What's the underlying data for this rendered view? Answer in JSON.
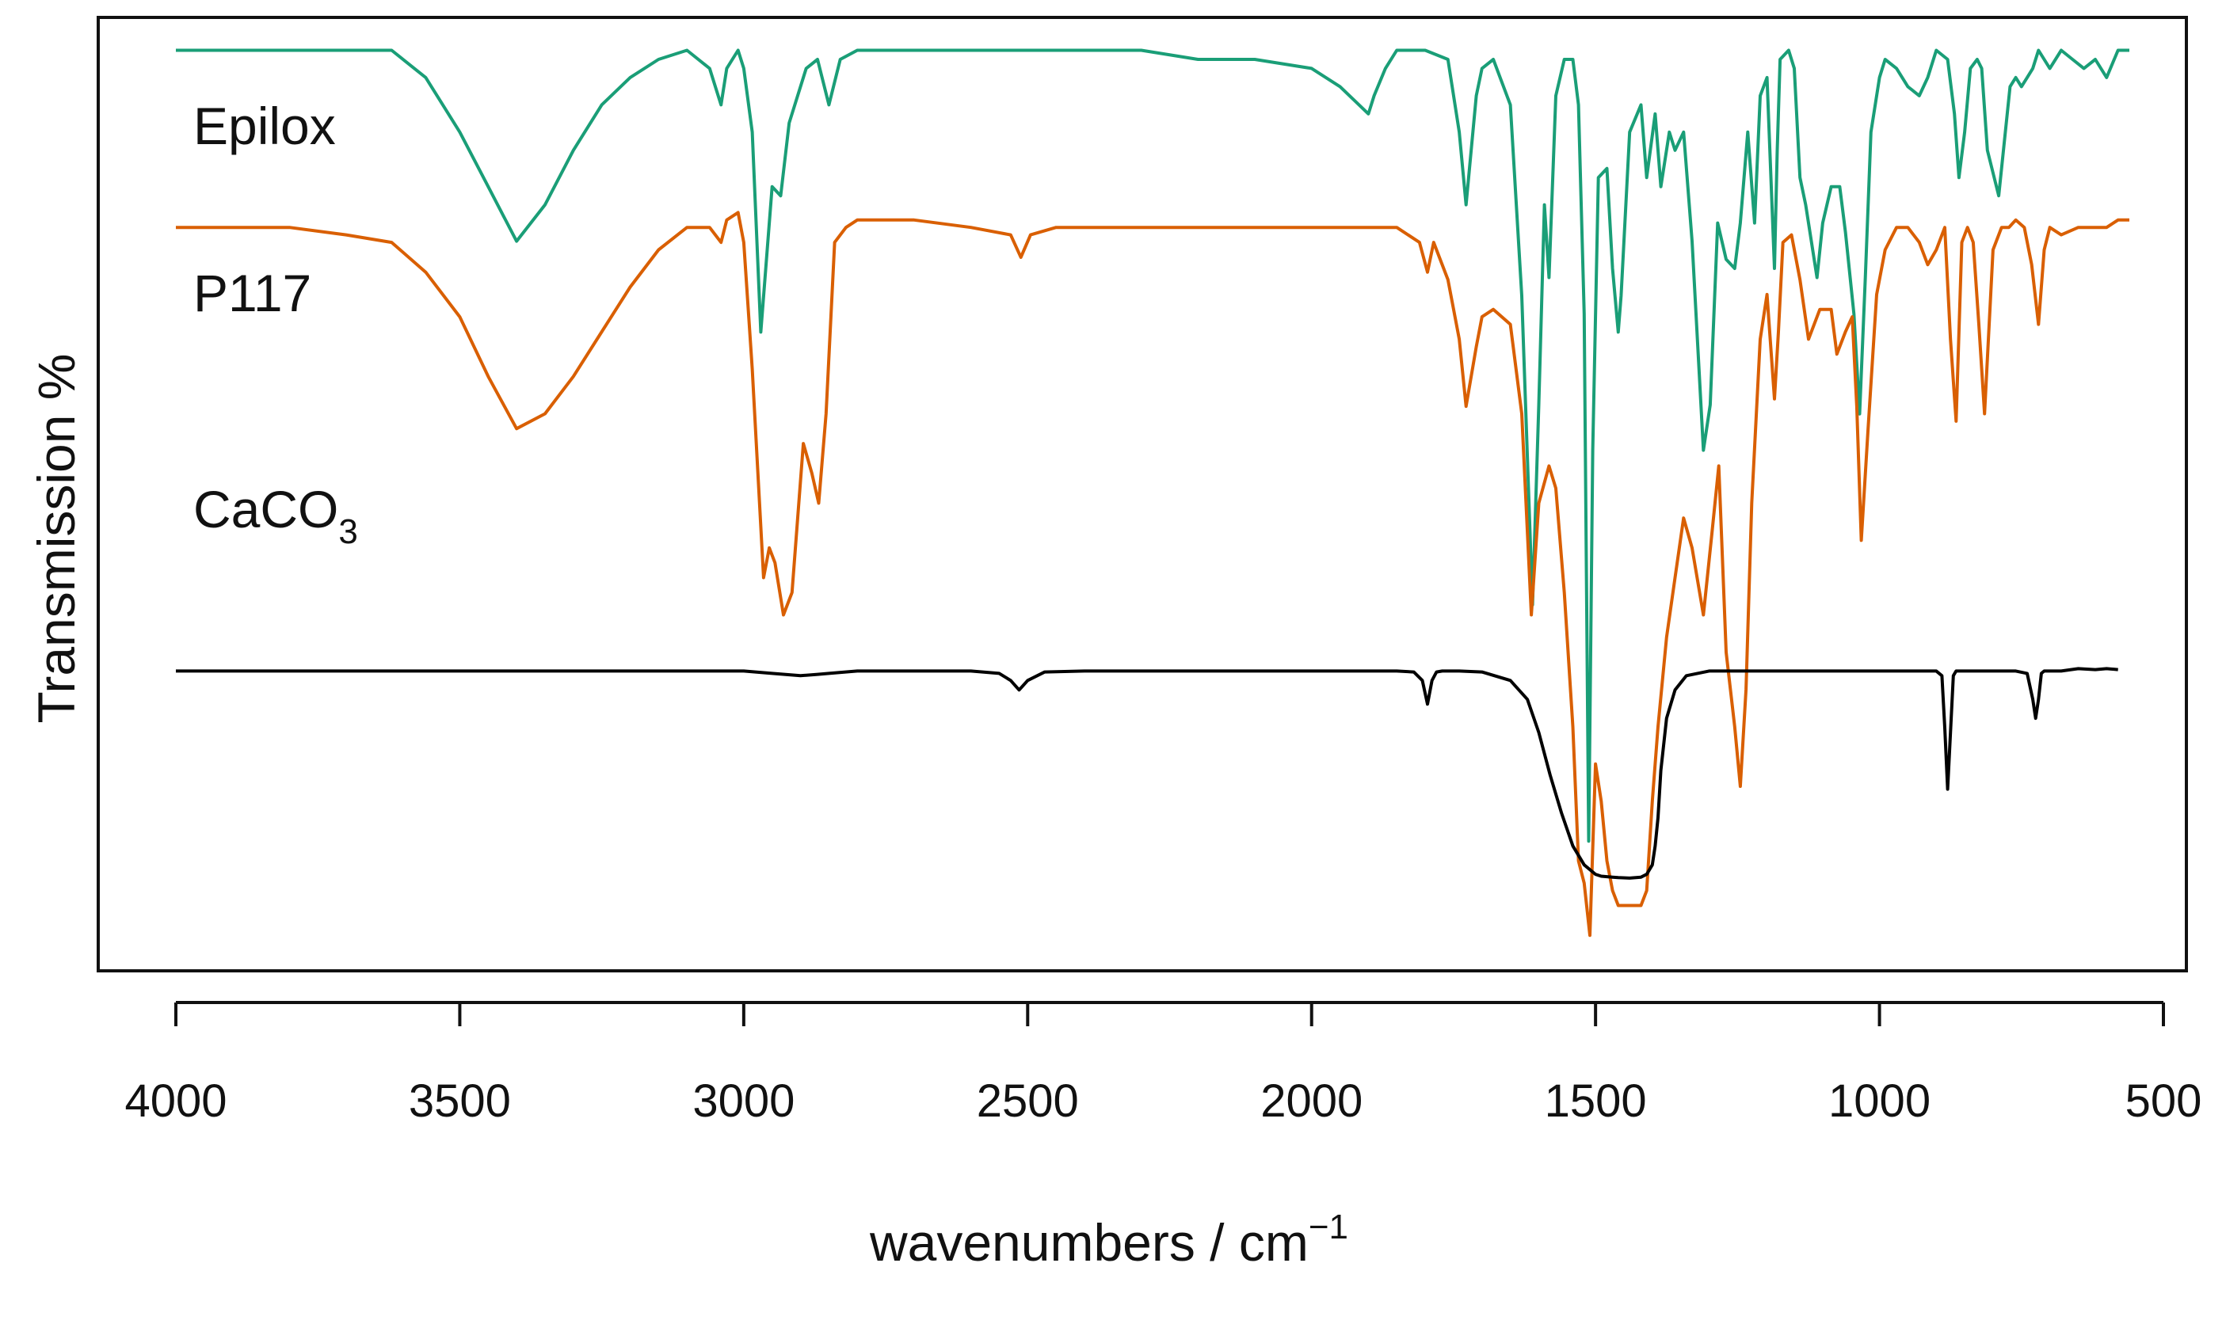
{
  "chart_data": {
    "type": "line",
    "title": "",
    "xlabel": "wavenumbers / cm",
    "xlabel_superscript": "−1",
    "ylabel": "Transmission %",
    "xlim": [
      4000,
      500
    ],
    "ylim": [
      0,
      100
    ],
    "xticks": [
      "4000",
      "3500",
      "3000",
      "2500",
      "2000",
      "1500",
      "1000",
      "500"
    ],
    "xtick_values": [
      4000,
      3500,
      3000,
      2500,
      2000,
      1500,
      1000,
      500
    ],
    "grid": false,
    "y_tick_labels_shown": false,
    "series": [
      {
        "name": "Epilox",
        "label_main": "Epilox",
        "label_sub": "",
        "color": "#1a9e77",
        "x": [
          4000,
          3900,
          3800,
          3700,
          3620,
          3560,
          3500,
          3450,
          3400,
          3350,
          3300,
          3250,
          3200,
          3150,
          3100,
          3060,
          3040,
          3030,
          3010,
          3000,
          2985,
          2970,
          2950,
          2935,
          2920,
          2890,
          2870,
          2850,
          2830,
          2800,
          2700,
          2600,
          2500,
          2400,
          2300,
          2200,
          2100,
          2000,
          1950,
          1900,
          1890,
          1870,
          1850,
          1800,
          1760,
          1740,
          1728,
          1710,
          1700,
          1680,
          1650,
          1630,
          1611,
          1600,
          1590,
          1582,
          1570,
          1555,
          1540,
          1530,
          1520,
          1512,
          1505,
          1495,
          1480,
          1470,
          1460,
          1455,
          1440,
          1420,
          1410,
          1395,
          1385,
          1370,
          1360,
          1345,
          1330,
          1310,
          1298,
          1285,
          1270,
          1255,
          1245,
          1232,
          1220,
          1210,
          1198,
          1185,
          1180,
          1175,
          1160,
          1150,
          1140,
          1130,
          1110,
          1100,
          1085,
          1070,
          1060,
          1045,
          1035,
          1025,
          1015,
          1000,
          990,
          970,
          950,
          930,
          915,
          900,
          880,
          868,
          860,
          850,
          840,
          828,
          820,
          810,
          790,
          770,
          760,
          750,
          740,
          730,
          720,
          700,
          680,
          660,
          640,
          620,
          600,
          580,
          560
        ],
        "y": [
          99,
          99,
          99,
          99,
          99,
          96,
          90,
          84,
          78,
          82,
          88,
          93,
          96,
          98,
          99,
          97,
          93,
          97,
          99,
          97,
          90,
          68,
          84,
          83,
          91,
          97,
          98,
          93,
          98,
          99,
          99,
          99,
          99,
          99,
          99,
          98,
          98,
          97,
          95,
          92,
          94,
          97,
          99,
          99,
          98,
          90,
          82,
          94,
          97,
          98,
          93,
          72,
          38,
          60,
          82,
          74,
          94,
          98,
          98,
          93,
          70,
          12,
          55,
          85,
          86,
          75,
          68,
          72,
          90,
          93,
          85,
          92,
          84,
          90,
          88,
          90,
          78,
          55,
          60,
          80,
          76,
          75,
          80,
          90,
          80,
          94,
          96,
          75,
          88,
          98,
          99,
          97,
          85,
          82,
          74,
          80,
          84,
          84,
          79,
          70,
          59,
          74,
          90,
          96,
          98,
          97,
          95,
          94,
          96,
          99,
          98,
          92,
          85,
          90,
          97,
          98,
          97,
          88,
          83,
          95,
          96,
          95,
          96,
          97,
          99,
          97,
          99,
          98,
          97,
          98,
          96,
          99,
          99
        ]
      },
      {
        "name": "P117",
        "label_main": "P117",
        "label_sub": "",
        "color": "#d95f02",
        "x": [
          4000,
          3900,
          3800,
          3700,
          3620,
          3560,
          3500,
          3450,
          3400,
          3350,
          3300,
          3250,
          3200,
          3150,
          3100,
          3060,
          3040,
          3030,
          3010,
          3000,
          2985,
          2965,
          2955,
          2945,
          2930,
          2915,
          2895,
          2880,
          2868,
          2855,
          2840,
          2820,
          2800,
          2700,
          2600,
          2530,
          2512,
          2495,
          2450,
          2300,
          2100,
          2000,
          1900,
          1850,
          1810,
          1796,
          1785,
          1760,
          1740,
          1728,
          1710,
          1700,
          1680,
          1650,
          1630,
          1613,
          1600,
          1582,
          1570,
          1555,
          1540,
          1530,
          1520,
          1510,
          1500,
          1490,
          1480,
          1470,
          1460,
          1440,
          1420,
          1410,
          1400,
          1390,
          1375,
          1360,
          1345,
          1330,
          1310,
          1295,
          1283,
          1270,
          1255,
          1245,
          1235,
          1225,
          1210,
          1198,
          1185,
          1178,
          1170,
          1155,
          1140,
          1125,
          1105,
          1085,
          1075,
          1060,
          1048,
          1040,
          1032,
          1020,
          1005,
          990,
          970,
          950,
          930,
          915,
          900,
          885,
          875,
          865,
          855,
          845,
          835,
          825,
          815,
          800,
          785,
          772,
          760,
          745,
          732,
          720,
          710,
          700,
          680,
          650,
          620,
          600,
          580,
          560
        ],
        "y": [
          97,
          97,
          97,
          96,
          95,
          91,
          85,
          77,
          70,
          72,
          77,
          83,
          89,
          94,
          97,
          97,
          95,
          98,
          99,
          95,
          78,
          50,
          54,
          52,
          45,
          48,
          68,
          64,
          60,
          72,
          95,
          97,
          98,
          98,
          97,
          96,
          93,
          96,
          97,
          97,
          97,
          97,
          97,
          97,
          95,
          91,
          95,
          90,
          82,
          73,
          81,
          85,
          86,
          84,
          72,
          45,
          60,
          65,
          62,
          48,
          30,
          12,
          9,
          2,
          25,
          20,
          12,
          8,
          6,
          6,
          6,
          8,
          20,
          30,
          42,
          50,
          58,
          54,
          45,
          56,
          65,
          40,
          30,
          22,
          35,
          60,
          82,
          88,
          74,
          83,
          95,
          96,
          90,
          82,
          86,
          86,
          80,
          83,
          85,
          73,
          55,
          70,
          88,
          94,
          97,
          97,
          95,
          92,
          94,
          97,
          82,
          71,
          95,
          97,
          95,
          84,
          72,
          94,
          97,
          97,
          98,
          97,
          92,
          84,
          94,
          97,
          96,
          97,
          97,
          97,
          98,
          98
        ]
      },
      {
        "name": "CaCO3",
        "label_main": "CaCO",
        "label_sub": "3",
        "color": "#000000",
        "x": [
          4000,
          3900,
          3800,
          3700,
          3600,
          3500,
          3400,
          3300,
          3200,
          3100,
          3000,
          2950,
          2900,
          2870,
          2850,
          2800,
          2700,
          2600,
          2550,
          2530,
          2515,
          2500,
          2470,
          2400,
          2300,
          2200,
          2100,
          2000,
          1900,
          1850,
          1820,
          1805,
          1796,
          1788,
          1780,
          1770,
          1740,
          1700,
          1650,
          1620,
          1600,
          1580,
          1560,
          1540,
          1520,
          1500,
          1490,
          1480,
          1470,
          1460,
          1440,
          1420,
          1410,
          1400,
          1395,
          1390,
          1385,
          1375,
          1360,
          1340,
          1300,
          1250,
          1200,
          1100,
          1000,
          950,
          900,
          890,
          885,
          880,
          875,
          870,
          865,
          855,
          840,
          800,
          760,
          740,
          730,
          725,
          720,
          715,
          710,
          700,
          680,
          650,
          620,
          600,
          580
        ],
        "y": [
          46,
          46,
          46,
          46,
          46,
          46,
          46,
          46,
          46,
          46,
          46,
          45.5,
          45,
          45.3,
          45.5,
          46,
          46,
          46,
          45.5,
          44,
          42,
          44,
          45.8,
          46,
          46,
          46,
          46,
          46,
          46,
          46,
          45.8,
          44,
          39,
          44,
          45.8,
          46,
          46,
          45.8,
          44,
          40,
          33,
          24,
          16,
          9,
          5,
          3,
          2.6,
          2.5,
          2.4,
          2.3,
          2.2,
          2.4,
          3,
          5,
          9,
          15,
          25,
          36,
          42,
          45,
          46,
          46,
          46,
          46,
          46,
          46,
          46,
          45,
          34,
          21,
          33,
          45,
          46,
          46,
          46,
          46,
          46,
          45.5,
          40,
          36,
          40,
          45.5,
          46,
          46,
          46,
          46.5,
          46.3,
          46.5,
          46.3
        ]
      }
    ]
  }
}
